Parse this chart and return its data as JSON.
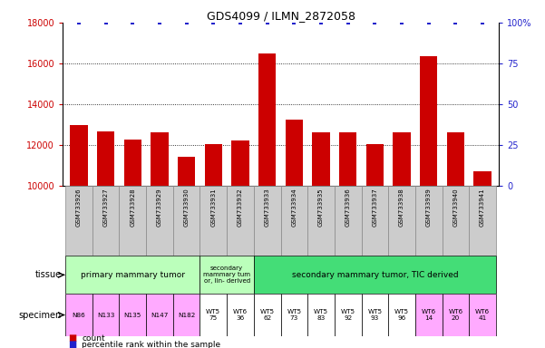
{
  "title": "GDS4099 / ILMN_2872058",
  "samples": [
    "GSM733926",
    "GSM733927",
    "GSM733928",
    "GSM733929",
    "GSM733930",
    "GSM733931",
    "GSM733932",
    "GSM733933",
    "GSM733934",
    "GSM733935",
    "GSM733936",
    "GSM733937",
    "GSM733938",
    "GSM733939",
    "GSM733940",
    "GSM733941"
  ],
  "counts": [
    13000,
    12700,
    12300,
    12650,
    11450,
    12050,
    12250,
    16500,
    13250,
    12650,
    12650,
    12050,
    12650,
    16350,
    12650,
    10750
  ],
  "ylim_left": [
    10000,
    18000
  ],
  "ylim_right": [
    0,
    100
  ],
  "yticks_left": [
    10000,
    12000,
    14000,
    16000,
    18000
  ],
  "yticks_right": [
    0,
    25,
    50,
    75,
    100
  ],
  "bar_color": "#cc0000",
  "percentile_color": "#2222cc",
  "tick_label_color_left": "#cc0000",
  "tick_label_color_right": "#2222cc",
  "grid_lines": [
    12000,
    14000,
    16000
  ],
  "tissue_groups": [
    {
      "label": "primary mammary tumor",
      "start": 0,
      "end": 4,
      "color": "#bbffbb"
    },
    {
      "label": "secondary\nmammary tum\nor, lin- derived",
      "start": 5,
      "end": 6,
      "color": "#bbffbb"
    },
    {
      "label": "secondary mammary tumor, TIC derived",
      "start": 7,
      "end": 15,
      "color": "#44dd77"
    }
  ],
  "specimen_labels": [
    "N86",
    "N133",
    "N135",
    "N147",
    "N182",
    "WT5\n75",
    "WT6\n36",
    "WT5\n62",
    "WT5\n73",
    "WT5\n83",
    "WT5\n92",
    "WT5\n93",
    "WT5\n96",
    "WT6\n14",
    "WT6\n20",
    "WT6\n41"
  ],
  "specimen_colors": [
    "#ffaaff",
    "#ffaaff",
    "#ffaaff",
    "#ffaaff",
    "#ffaaff",
    "#ffffff",
    "#ffffff",
    "#ffffff",
    "#ffffff",
    "#ffffff",
    "#ffffff",
    "#ffffff",
    "#ffffff",
    "#ffaaff",
    "#ffaaff",
    "#ffaaff"
  ],
  "xticklabel_bg": "#cccccc",
  "legend_count": "count",
  "legend_percentile": "percentile rank within the sample",
  "background_color": "#ffffff"
}
